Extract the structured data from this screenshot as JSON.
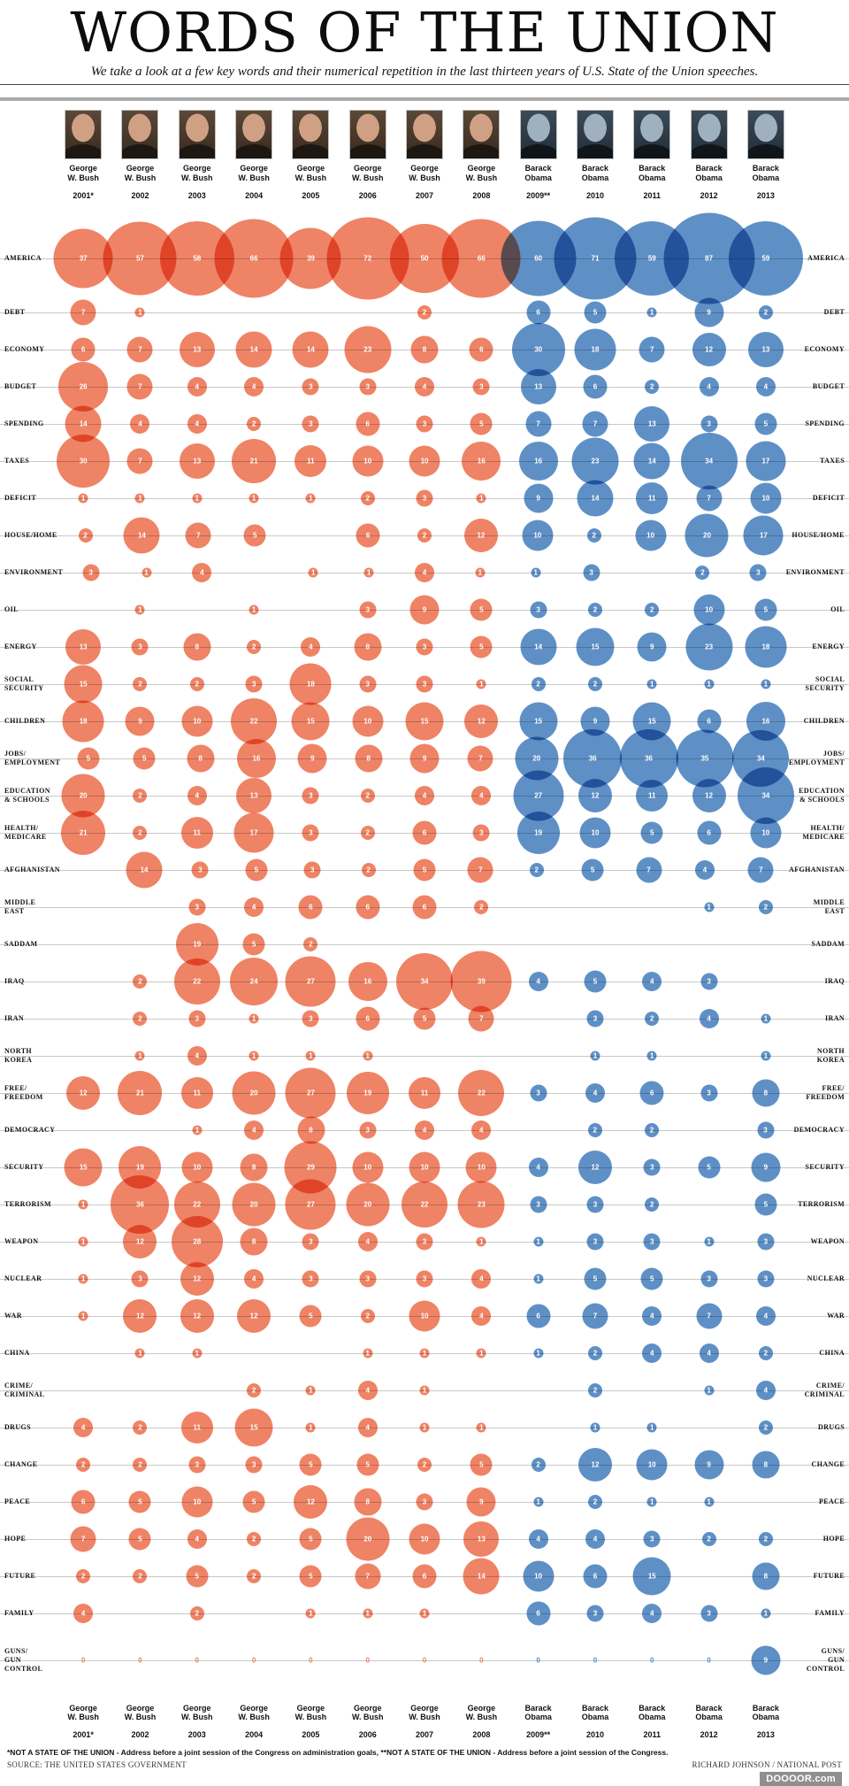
{
  "title": "WORDS OF THE UNION",
  "subtitle": "We take a look at a few key words and their numerical repetition in the last thirteen years of U.S. State of the Union speeches.",
  "columns": [
    {
      "president": "George\nW. Bush",
      "year": "2001*",
      "party": "bush"
    },
    {
      "president": "George\nW. Bush",
      "year": "2002",
      "party": "bush"
    },
    {
      "president": "George\nW. Bush",
      "year": "2003",
      "party": "bush"
    },
    {
      "president": "George\nW. Bush",
      "year": "2004",
      "party": "bush"
    },
    {
      "president": "George\nW. Bush",
      "year": "2005",
      "party": "bush"
    },
    {
      "president": "George\nW. Bush",
      "year": "2006",
      "party": "bush"
    },
    {
      "president": "George\nW. Bush",
      "year": "2007",
      "party": "bush"
    },
    {
      "president": "George\nW. Bush",
      "year": "2008",
      "party": "bush"
    },
    {
      "president": "Barack\nObama",
      "year": "2009**",
      "party": "obama"
    },
    {
      "president": "Barack\nObama",
      "year": "2010",
      "party": "obama"
    },
    {
      "president": "Barack\nObama",
      "year": "2011",
      "party": "obama"
    },
    {
      "president": "Barack\nObama",
      "year": "2012",
      "party": "obama"
    },
    {
      "president": "Barack\nObama",
      "year": "2013",
      "party": "obama"
    }
  ],
  "chart_data": {
    "type": "bubble",
    "description": "Bubble matrix: word repetition counts per State of the Union speech; bubble area proportional to count; orange = George W. Bush, blue = Barack Obama",
    "categories": [
      "2001*",
      "2002",
      "2003",
      "2004",
      "2005",
      "2006",
      "2007",
      "2008",
      "2009**",
      "2010",
      "2011",
      "2012",
      "2013"
    ],
    "colors": {
      "bush": "#EF8365",
      "obama": "#5E90C6",
      "rowline": "#C9C9C9"
    },
    "series": [
      {
        "name": "AMERICA",
        "values": [
          37,
          57,
          58,
          66,
          39,
          72,
          50,
          66,
          60,
          71,
          59,
          87,
          59
        ]
      },
      {
        "name": "DEBT",
        "values": [
          7,
          1,
          null,
          null,
          null,
          null,
          2,
          null,
          6,
          5,
          1,
          9,
          2
        ]
      },
      {
        "name": "ECONOMY",
        "values": [
          6,
          7,
          13,
          14,
          14,
          23,
          8,
          6,
          30,
          18,
          7,
          12,
          13
        ]
      },
      {
        "name": "BUDGET",
        "values": [
          26,
          7,
          4,
          4,
          3,
          3,
          4,
          3,
          13,
          6,
          2,
          4,
          4
        ]
      },
      {
        "name": "SPENDING",
        "values": [
          14,
          4,
          4,
          2,
          3,
          6,
          3,
          5,
          7,
          7,
          13,
          3,
          5
        ]
      },
      {
        "name": "TAXES",
        "values": [
          30,
          7,
          13,
          21,
          11,
          10,
          10,
          16,
          16,
          23,
          14,
          34,
          17
        ]
      },
      {
        "name": "DEFICIT",
        "values": [
          1,
          1,
          1,
          1,
          1,
          2,
          3,
          1,
          9,
          14,
          11,
          7,
          10
        ]
      },
      {
        "name": "HOUSE/HOME",
        "values": [
          2,
          14,
          7,
          5,
          null,
          6,
          2,
          12,
          10,
          2,
          10,
          20,
          17
        ]
      },
      {
        "name": "ENVIRONMENT",
        "values": [
          3,
          1,
          4,
          null,
          1,
          1,
          4,
          1,
          1,
          3,
          null,
          2,
          3
        ]
      },
      {
        "name": "OIL",
        "values": [
          null,
          1,
          null,
          1,
          null,
          3,
          9,
          5,
          3,
          2,
          2,
          10,
          5
        ]
      },
      {
        "name": "ENERGY",
        "values": [
          13,
          3,
          8,
          2,
          4,
          8,
          3,
          5,
          14,
          15,
          9,
          23,
          18
        ]
      },
      {
        "name": "SOCIAL\nSECURITY",
        "values": [
          15,
          2,
          2,
          3,
          18,
          3,
          3,
          1,
          2,
          2,
          1,
          1,
          1
        ]
      },
      {
        "name": "CHILDREN",
        "values": [
          18,
          9,
          10,
          22,
          15,
          10,
          15,
          12,
          15,
          9,
          15,
          6,
          16
        ]
      },
      {
        "name": "JOBS/\nEMPLOYMENT",
        "values": [
          5,
          5,
          8,
          16,
          9,
          8,
          9,
          7,
          20,
          36,
          36,
          35,
          34
        ]
      },
      {
        "name": "EDUCATION\n& SCHOOLS",
        "values": [
          20,
          2,
          4,
          13,
          3,
          2,
          4,
          4,
          27,
          12,
          11,
          12,
          34
        ]
      },
      {
        "name": "HEALTH/\nMEDICARE",
        "values": [
          21,
          2,
          11,
          17,
          3,
          2,
          6,
          3,
          19,
          10,
          5,
          6,
          10
        ]
      },
      {
        "name": "AFGHANISTAN",
        "values": [
          null,
          14,
          3,
          5,
          3,
          2,
          5,
          7,
          2,
          5,
          7,
          4,
          7
        ]
      },
      {
        "name": "MIDDLE EAST",
        "values": [
          null,
          null,
          3,
          4,
          6,
          6,
          6,
          2,
          null,
          null,
          null,
          1,
          2
        ]
      },
      {
        "name": "SADDAM",
        "values": [
          null,
          null,
          19,
          5,
          2,
          null,
          null,
          null,
          null,
          null,
          null,
          null,
          null
        ]
      },
      {
        "name": "IRAQ",
        "values": [
          null,
          2,
          22,
          24,
          27,
          16,
          34,
          39,
          4,
          5,
          4,
          3,
          null
        ]
      },
      {
        "name": "IRAN",
        "values": [
          null,
          2,
          3,
          1,
          3,
          6,
          5,
          7,
          null,
          3,
          2,
          4,
          1
        ]
      },
      {
        "name": "NORTH\nKOREA",
        "values": [
          null,
          1,
          4,
          1,
          1,
          1,
          null,
          null,
          null,
          1,
          1,
          null,
          1
        ]
      },
      {
        "name": "FREE/\nFREEDOM",
        "values": [
          12,
          21,
          11,
          20,
          27,
          19,
          11,
          22,
          3,
          4,
          6,
          3,
          8
        ]
      },
      {
        "name": "DEMOCRACY",
        "values": [
          null,
          null,
          1,
          4,
          8,
          3,
          4,
          4,
          null,
          2,
          2,
          null,
          3
        ]
      },
      {
        "name": "SECURITY",
        "values": [
          15,
          19,
          10,
          8,
          29,
          10,
          10,
          10,
          4,
          12,
          3,
          5,
          9
        ]
      },
      {
        "name": "TERRORISM",
        "values": [
          1,
          36,
          22,
          20,
          27,
          20,
          22,
          23,
          3,
          3,
          2,
          null,
          5
        ]
      },
      {
        "name": "WEAPON",
        "values": [
          1,
          12,
          28,
          8,
          3,
          4,
          3,
          1,
          1,
          3,
          3,
          1,
          3
        ]
      },
      {
        "name": "NUCLEAR",
        "values": [
          1,
          3,
          12,
          4,
          3,
          3,
          3,
          4,
          1,
          5,
          5,
          3,
          3
        ]
      },
      {
        "name": "WAR",
        "values": [
          1,
          12,
          12,
          12,
          5,
          2,
          10,
          4,
          6,
          7,
          4,
          7,
          4
        ]
      },
      {
        "name": "CHINA",
        "values": [
          null,
          1,
          1,
          null,
          null,
          1,
          1,
          1,
          1,
          2,
          4,
          4,
          2
        ]
      },
      {
        "name": "CRIME/\nCRIMINAL",
        "values": [
          null,
          null,
          null,
          2,
          1,
          4,
          1,
          null,
          null,
          2,
          null,
          1,
          4
        ]
      },
      {
        "name": "DRUGS",
        "values": [
          4,
          2,
          11,
          15,
          1,
          4,
          1,
          1,
          null,
          1,
          1,
          null,
          2
        ]
      },
      {
        "name": "CHANGE",
        "values": [
          2,
          2,
          3,
          3,
          5,
          5,
          2,
          5,
          2,
          12,
          10,
          9,
          8
        ]
      },
      {
        "name": "PEACE",
        "values": [
          6,
          5,
          10,
          5,
          12,
          8,
          3,
          9,
          1,
          2,
          1,
          1,
          null
        ]
      },
      {
        "name": "HOPE",
        "values": [
          7,
          5,
          4,
          2,
          5,
          20,
          10,
          13,
          4,
          4,
          3,
          2,
          2
        ]
      },
      {
        "name": "FUTURE",
        "values": [
          2,
          2,
          5,
          2,
          5,
          7,
          6,
          14,
          10,
          6,
          15,
          null,
          8
        ]
      },
      {
        "name": "FAMILY",
        "values": [
          4,
          null,
          2,
          null,
          1,
          1,
          1,
          null,
          6,
          3,
          4,
          3,
          1
        ]
      },
      {
        "name": "GUNS/\nGUN\nCONTROL",
        "values": [
          0,
          0,
          0,
          0,
          0,
          0,
          0,
          0,
          0,
          0,
          0,
          0,
          9
        ]
      }
    ]
  },
  "footer": {
    "footnote": "*NOT A STATE OF THE UNION - Address before a joint session of the Congress on administration goals, **NOT A STATE OF THE UNION - Address before a joint session of the Congress.",
    "source": "SOURCE: THE UNITED STATES GOVERNMENT",
    "credit": "RICHARD JOHNSON / NATIONAL POST",
    "badge": "DOOOOR.com"
  }
}
